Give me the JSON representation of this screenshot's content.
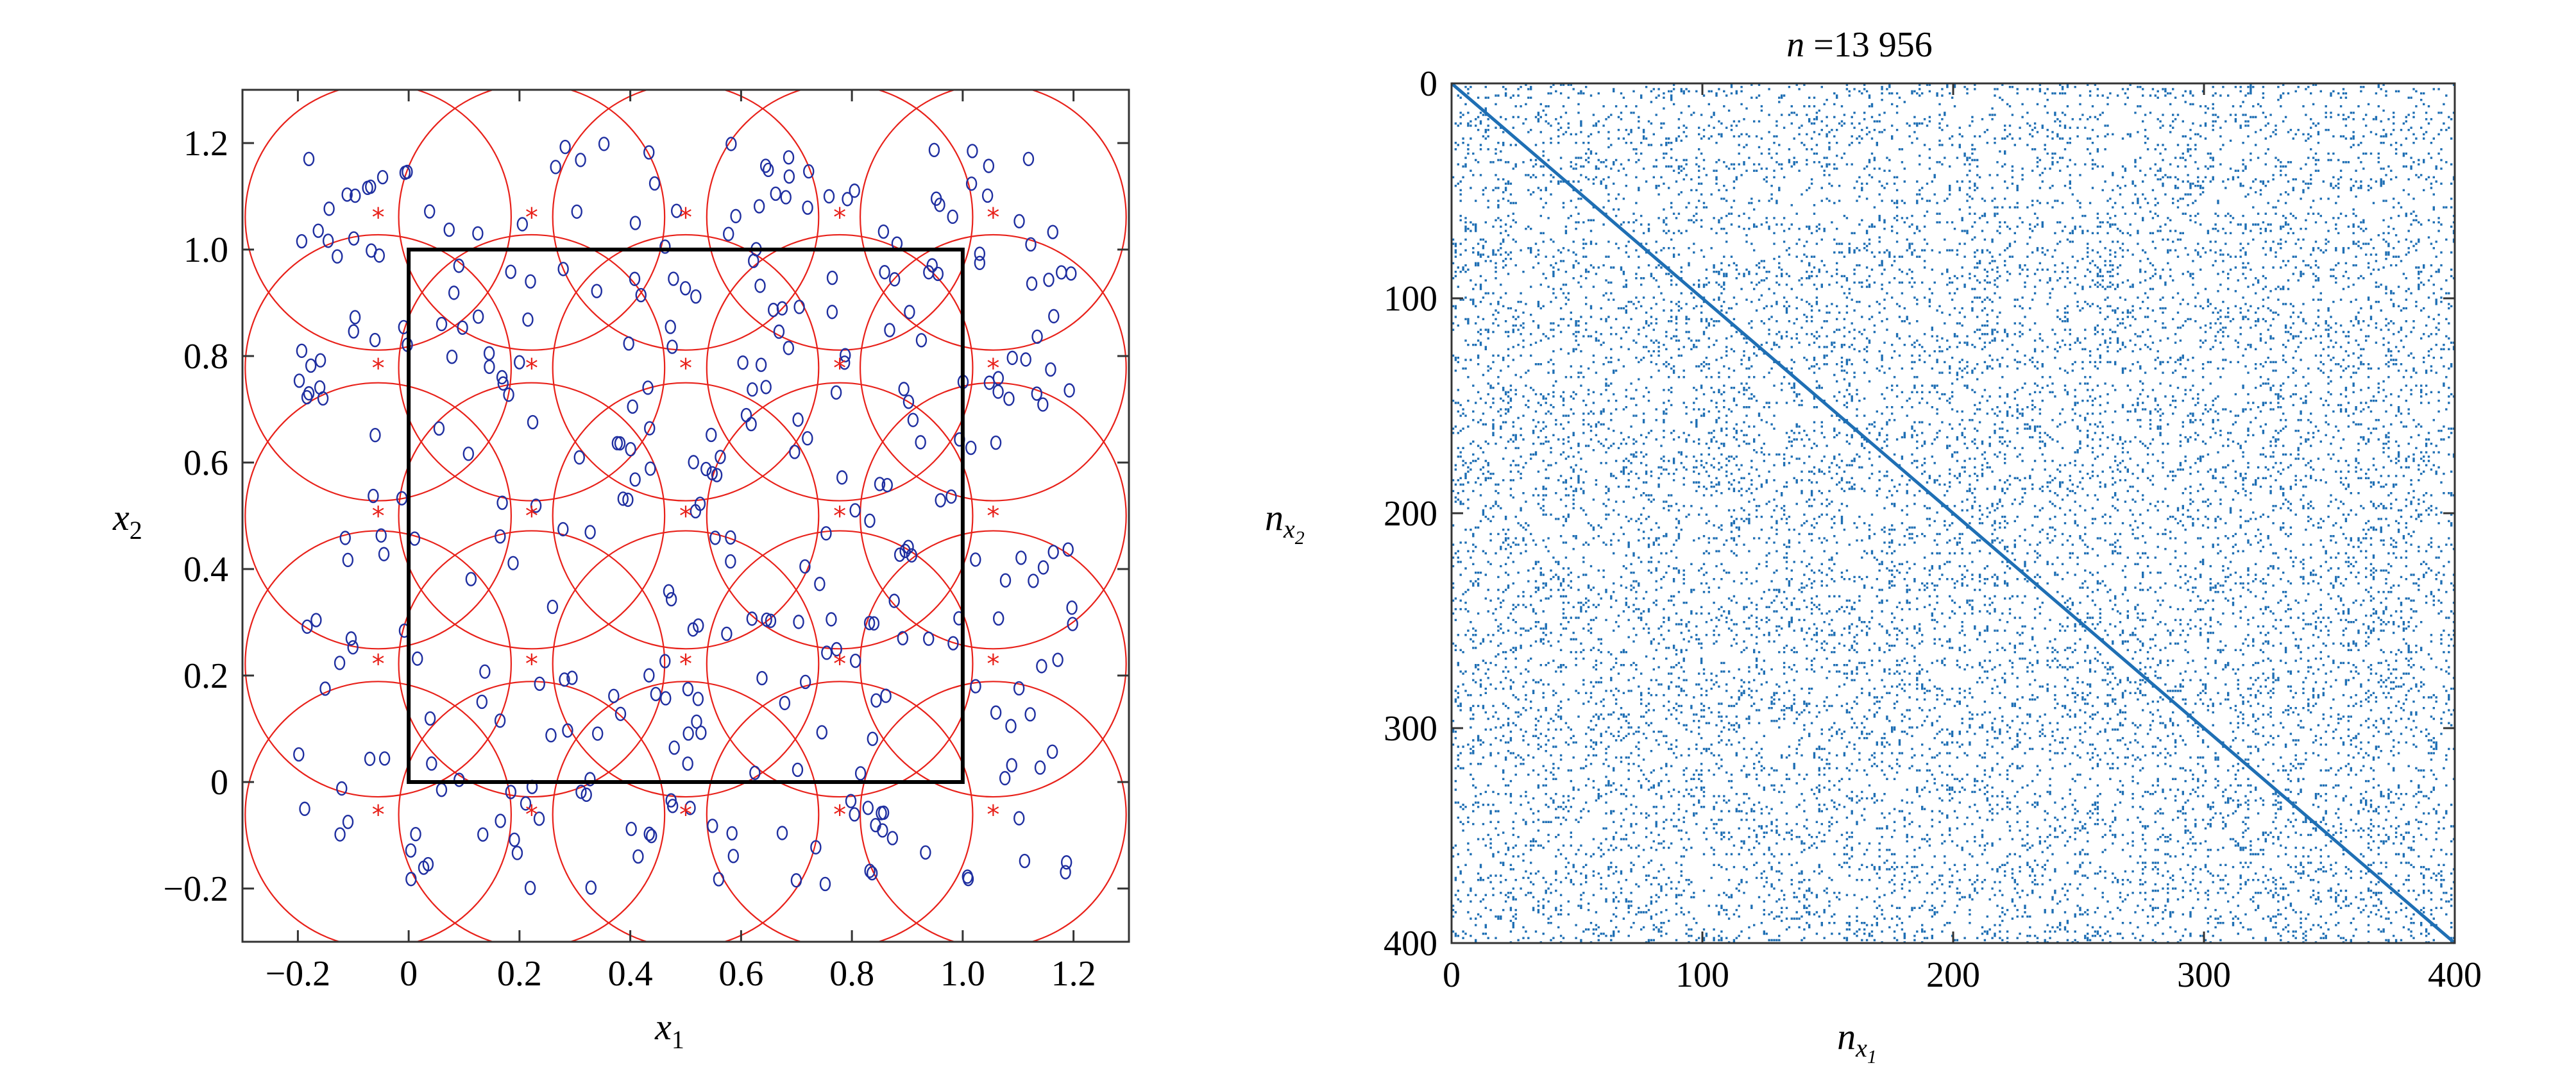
{
  "chart_data": [
    {
      "type": "scatter",
      "title": "",
      "xlabel": "x",
      "xlabel_sub": "1",
      "ylabel": "x",
      "ylabel_sub": "2",
      "xlim": [
        -0.3,
        1.3
      ],
      "ylim": [
        -0.3,
        1.3
      ],
      "xticks": [
        -0.2,
        0,
        0.2,
        0.4,
        0.6,
        0.8,
        1.0,
        1.2
      ],
      "xtick_labels": [
        "−0.2",
        "0",
        "0.2",
        "0.4",
        "0.6",
        "0.8",
        "1.0",
        "1.2"
      ],
      "yticks": [
        -0.2,
        0,
        0.2,
        0.4,
        0.6,
        0.8,
        1.0,
        1.2
      ],
      "ytick_labels": [
        "−0.2",
        "0",
        "0.2",
        "0.4",
        "0.6",
        "0.8",
        "1.0",
        "1.2"
      ],
      "grid": false,
      "unit_square": {
        "x": [
          0,
          1
        ],
        "y": [
          0,
          1
        ],
        "color": "#000000"
      },
      "centers": {
        "x": [
          -0.055,
          0.222,
          0.5,
          0.778,
          1.055
        ],
        "y": [
          -0.061,
          0.222,
          0.5,
          0.778,
          1.061
        ],
        "radius": 0.24,
        "marker_color": "#e8211a",
        "circle_color": "#e8211a"
      },
      "points": {
        "marker_color": "#1f2fa0",
        "count": 350,
        "x_range": [
          -0.2,
          1.2
        ],
        "y_range": [
          -0.2,
          1.2
        ]
      }
    },
    {
      "type": "heatmap",
      "subtype": "sparsity-pattern",
      "title_italic": "n",
      "title_rest": " =13 956",
      "xlabel": "n",
      "xlabel_sub": "x",
      "xlabel_subsub": "1",
      "ylabel": "n",
      "ylabel_sub": "x",
      "ylabel_subsub": "2",
      "xlim": [
        0,
        400
      ],
      "ylim": [
        0,
        400
      ],
      "y_reversed": true,
      "xticks": [
        0,
        100,
        200,
        300,
        400
      ],
      "xtick_labels": [
        "0",
        "100",
        "200",
        "300",
        "400"
      ],
      "yticks": [
        0,
        100,
        200,
        300,
        400
      ],
      "ytick_labels": [
        "0",
        "100",
        "200",
        "300",
        "400"
      ],
      "nonzeros": 13956,
      "matrix_size": 400,
      "dot_color": "#1f6fb4",
      "diagonal": true
    }
  ]
}
